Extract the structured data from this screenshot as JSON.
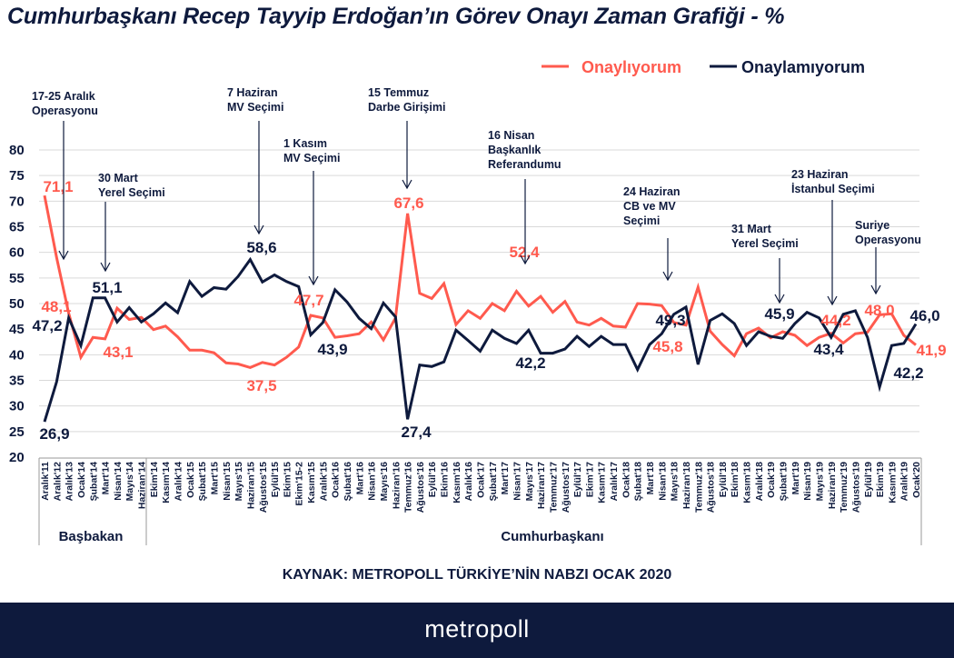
{
  "chart_data": {
    "type": "line",
    "title": "Cumhurbaşkanı Recep Tayyip Erdoğan’ın Görev Onayı Zaman Grafiği - %",
    "xlabel": "",
    "ylabel": "",
    "ylim": [
      20,
      80
    ],
    "yticks": [
      20,
      25,
      30,
      35,
      40,
      45,
      50,
      55,
      60,
      65,
      70,
      75,
      80
    ],
    "grid": true,
    "legend_position": "top-right",
    "categories": [
      "Aralık'11",
      "Aralık'12",
      "Aralık'13",
      "Ocak'14",
      "Şubat'14",
      "Mart'14",
      "Nisan'14",
      "Mayıs'14",
      "Haziran'14",
      "Ekim'14",
      "Kasım'14",
      "Aralık'14",
      "Ocak'15",
      "Şubat'15",
      "Mart'15",
      "Nisan'15",
      "Mayıs'15",
      "Haziran'15",
      "Ağustos'15",
      "Eylül'15",
      "Ekim'15",
      "Ekim'15-2",
      "Kasım'15",
      "Aralık'15",
      "Ocak'16",
      "Şubat'16",
      "Mart'16",
      "Nisan'16",
      "Mayıs'16",
      "Haziran'16",
      "Temmuz'16",
      "Ağustos'16",
      "Eylül'16",
      "Ekim'16",
      "Kasım'16",
      "Aralık'16",
      "Ocak'17",
      "Şubat'17",
      "Mart'17",
      "Nisan'17",
      "Mayıs'17",
      "Haziran'17",
      "Temmuz'17",
      "Ağustos'17",
      "Eylül'17",
      "Ekim'17",
      "Kasım'17",
      "Aralık'17",
      "Ocak'18",
      "Şubat'18",
      "Mart'18",
      "Nisan'18",
      "Mayıs'18",
      "Haziran'18",
      "Temmuz'18",
      "Ağustos'18",
      "Eylül'18",
      "Ekim'18",
      "Kasım'18",
      "Aralık'18",
      "Ocak'19",
      "Şubat'19",
      "Mart'19",
      "Nisan'19",
      "Mayıs'19",
      "Haziran'19",
      "Temmuz'19",
      "Ağustos'19",
      "Eylül'19",
      "Ekim'19",
      "Kasım'19",
      "Aralık'19",
      "Ocak'20"
    ],
    "series": [
      {
        "name": "Onaylıyorum",
        "color": "#ff5a4e",
        "values": [
          71.1,
          59.0,
          48.1,
          39.5,
          43.4,
          43.1,
          49.1,
          46.9,
          47.3,
          44.9,
          45.6,
          43.5,
          40.9,
          40.9,
          40.4,
          38.4,
          38.2,
          37.5,
          38.5,
          38.0,
          39.5,
          41.5,
          47.7,
          47.2,
          43.4,
          43.7,
          44.1,
          46.4,
          42.9,
          47.2,
          67.6,
          52.0,
          51.0,
          53.9,
          45.9,
          48.6,
          47.1,
          50.0,
          48.6,
          52.4,
          49.5,
          51.4,
          48.3,
          50.4,
          46.4,
          45.8,
          47.1,
          45.6,
          45.4,
          50.0,
          49.9,
          49.6,
          46.3,
          45.8,
          53.2,
          44.6,
          42.0,
          39.8,
          44.1,
          45.2,
          43.3,
          44.5,
          43.8,
          41.8,
          43.4,
          44.2,
          42.3,
          44.1,
          44.4,
          47.8,
          48.0,
          43.8,
          41.9
        ]
      },
      {
        "name": "Onaylamıyorum",
        "color": "#0e1a3d",
        "values": [
          26.9,
          34.7,
          47.2,
          41.8,
          51.1,
          51.1,
          46.4,
          49.2,
          46.4,
          48.0,
          50.1,
          48.2,
          54.3,
          51.4,
          53.1,
          52.8,
          55.3,
          58.6,
          54.2,
          55.6,
          54.3,
          53.3,
          43.9,
          46.3,
          52.7,
          50.3,
          47.1,
          45.1,
          50.1,
          47.4,
          27.4,
          38.0,
          37.7,
          38.6,
          44.8,
          42.8,
          40.7,
          44.8,
          43.2,
          42.2,
          44.8,
          40.3,
          40.3,
          41.1,
          43.6,
          41.6,
          43.6,
          42.0,
          42.0,
          37.1,
          42.0,
          44.1,
          47.9,
          49.3,
          38.1,
          46.7,
          48.0,
          46.1,
          41.8,
          44.5,
          43.6,
          43.2,
          46.1,
          48.3,
          47.2,
          43.4,
          47.9,
          48.6,
          43.4,
          33.7,
          41.8,
          42.2,
          46.0
        ]
      }
    ],
    "value_labels": [
      {
        "series": 0,
        "text": "71,1"
      },
      {
        "series": 0,
        "text": "48,1"
      },
      {
        "series": 0,
        "text": "43,1"
      },
      {
        "series": 0,
        "text": "37,5"
      },
      {
        "series": 0,
        "text": "47,7"
      },
      {
        "series": 0,
        "text": "67,6"
      },
      {
        "series": 0,
        "text": "52,4"
      },
      {
        "series": 0,
        "text": "45,8"
      },
      {
        "series": 0,
        "text": "44,2"
      },
      {
        "series": 0,
        "text": "48,0"
      },
      {
        "series": 0,
        "text": "41,9"
      },
      {
        "series": 1,
        "text": "26,9"
      },
      {
        "series": 1,
        "text": "47,2"
      },
      {
        "series": 1,
        "text": "51,1"
      },
      {
        "series": 1,
        "text": "58,6"
      },
      {
        "series": 1,
        "text": "43,9"
      },
      {
        "series": 1,
        "text": "27,4"
      },
      {
        "series": 1,
        "text": "42,2"
      },
      {
        "series": 1,
        "text": "49,3"
      },
      {
        "series": 1,
        "text": "45,9"
      },
      {
        "series": 1,
        "text": "43,4"
      },
      {
        "series": 1,
        "text": "42,2"
      },
      {
        "series": 1,
        "text": "46,0"
      }
    ],
    "annotations": [
      {
        "lines": [
          "17-25 Aralık",
          "Operasyonu"
        ]
      },
      {
        "lines": [
          "30 Mart",
          "Yerel Seçimi"
        ]
      },
      {
        "lines": [
          "7 Haziran",
          "MV Seçimi"
        ]
      },
      {
        "lines": [
          "1 Kasım",
          "MV Seçimi"
        ]
      },
      {
        "lines": [
          "15 Temmuz",
          "Darbe Girişimi"
        ]
      },
      {
        "lines": [
          "16 Nisan",
          "Başkanlık",
          "Referandumu"
        ]
      },
      {
        "lines": [
          "24 Haziran",
          "CB  ve MV",
          "Seçimi"
        ]
      },
      {
        "lines": [
          "31 Mart",
          "Yerel Seçimi"
        ]
      },
      {
        "lines": [
          "23 Haziran",
          "İstanbul Seçimi"
        ]
      },
      {
        "lines": [
          "Suriye",
          "Operasyonu"
        ]
      }
    ],
    "groups": [
      "Başbakan",
      "Cumhurbaşkanı"
    ]
  },
  "source": "KAYNAK: METROPOLL TÜRKİYE’NİN NABZI OCAK 2020",
  "footer": {
    "brand": "metropoll"
  }
}
